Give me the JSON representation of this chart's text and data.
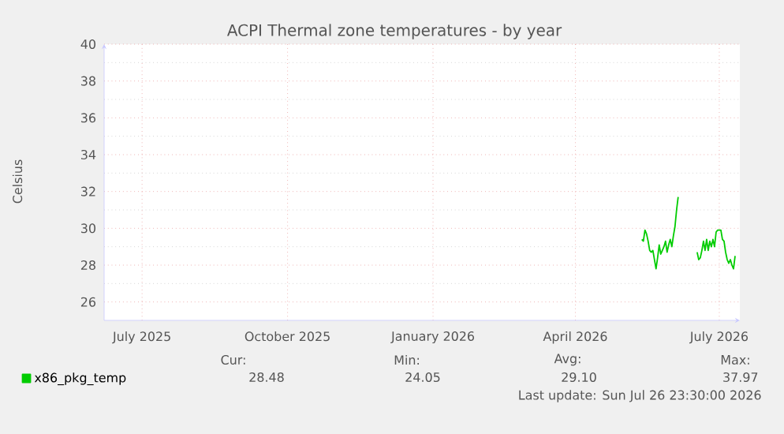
{
  "chart_data": {
    "type": "line",
    "title": "ACPI Thermal zone temperatures - by year",
    "ylabel": "Celsius",
    "x": [
      "2026-05-25",
      "2026-05-26",
      "2026-05-27",
      "2026-05-28",
      "2026-05-29",
      "2026-05-30",
      "2026-05-31",
      "2026-06-01",
      "2026-06-02",
      "2026-06-03",
      "2026-06-04",
      "2026-06-05",
      "2026-06-06",
      "2026-06-07",
      "2026-06-08",
      "2026-06-09",
      "2026-06-10",
      "2026-06-11",
      "2026-06-12",
      "2026-06-13",
      "2026-06-14",
      "2026-06-15",
      "2026-06-16",
      "2026-06-17",
      "2026-06-23",
      "2026-06-29",
      "2026-06-30",
      "2026-07-01",
      "2026-07-02",
      "2026-07-03",
      "2026-07-04",
      "2026-07-05",
      "2026-07-06",
      "2026-07-07",
      "2026-07-08",
      "2026-07-09",
      "2026-07-10",
      "2026-07-11",
      "2026-07-12",
      "2026-07-14",
      "2026-07-15",
      "2026-07-16",
      "2026-07-17",
      "2026-07-18",
      "2026-07-19",
      "2026-07-20",
      "2026-07-21",
      "2026-07-22",
      "2026-07-23"
    ],
    "series": [
      {
        "name": "x86_pkg_temp",
        "color": "#00cc00",
        "values": [
          29.4,
          29.3,
          29.9,
          29.7,
          29.3,
          28.8,
          28.7,
          28.8,
          28.3,
          27.8,
          28.4,
          29.1,
          28.6,
          28.8,
          29.0,
          29.3,
          28.7,
          29.1,
          29.4,
          29.0,
          29.6,
          30.1,
          31.0,
          31.7,
          null,
          28.7,
          28.3,
          28.4,
          28.8,
          29.3,
          28.8,
          29.4,
          28.8,
          29.3,
          29.0,
          29.4,
          29.0,
          29.8,
          29.9,
          29.9,
          29.4,
          29.3,
          28.7,
          28.3,
          28.1,
          28.3,
          28.0,
          27.8,
          28.5
        ]
      }
    ],
    "xlim": [
      "2025-06-19",
      "2026-07-26"
    ],
    "xticks": [
      {
        "value": "2025-07-13",
        "label": "July 2025"
      },
      {
        "value": "2025-10-13",
        "label": "October 2025"
      },
      {
        "value": "2026-01-13",
        "label": "January 2026"
      },
      {
        "value": "2026-04-13",
        "label": "April 2026"
      },
      {
        "value": "2026-07-13",
        "label": "July 2026"
      }
    ],
    "ylim": [
      25,
      40
    ],
    "yticks": [
      26,
      28,
      30,
      32,
      34,
      36,
      38,
      40
    ],
    "grid": true,
    "legend": "bottom",
    "line_style": "solid",
    "annotations": [
      "Cur:",
      "Min:",
      "Avg:",
      "Max:",
      "28.48",
      "24.05",
      "29.10",
      "37.97",
      "Last update: Sun Jul 26 23:30:00 2026"
    ]
  }
}
